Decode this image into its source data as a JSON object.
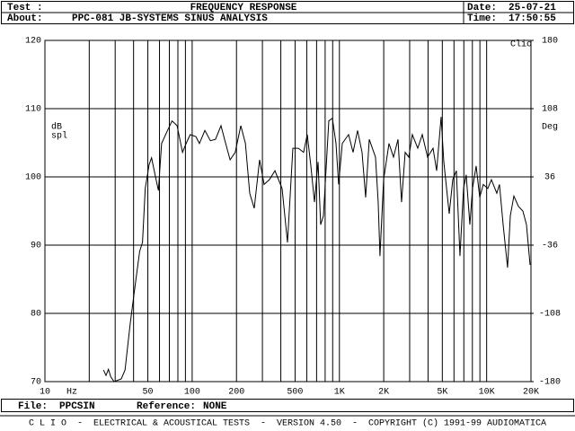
{
  "header": {
    "test_label": "Test :",
    "title": "FREQUENCY RESPONSE",
    "date_label": "Date:",
    "date": "25-07-21",
    "about_label": "About:",
    "about": "PPC-081 JB-SYSTEMS SINUS ANALYSIS",
    "time_label": "Time:",
    "time": "17:50:55"
  },
  "chart_data": {
    "type": "line",
    "x_log": true,
    "grid": true,
    "color": "#000000",
    "xlim": [
      10,
      20000
    ],
    "xticks": [
      10,
      50,
      100,
      200,
      500,
      {
        "value": 1000,
        "label": "1K"
      },
      {
        "value": 2000,
        "label": "2K"
      },
      {
        "value": 5000,
        "label": "5K"
      },
      {
        "value": 10000,
        "label": "10K"
      },
      {
        "value": 20000,
        "label": "20K"
      }
    ],
    "x_minor_grid": [
      20,
      30,
      40,
      60,
      70,
      80,
      90,
      300,
      400,
      600,
      700,
      800,
      900,
      3000,
      4000,
      6000,
      7000,
      8000,
      9000
    ],
    "x_unit": "Hz",
    "ylim": [
      70,
      120
    ],
    "yticks": [
      70,
      80,
      90,
      100,
      110,
      120
    ],
    "y_label": [
      "dB",
      "spl"
    ],
    "y2lim": [
      -180,
      180
    ],
    "y2ticks": [
      -180,
      -108,
      -36,
      36,
      108,
      180
    ],
    "y2_label": "Deg",
    "logo": "Clio",
    "x": [
      25,
      26,
      27,
      28,
      29.5,
      33,
      35,
      38,
      41,
      44,
      46,
      48,
      51,
      53,
      56,
      59,
      62,
      68,
      73,
      79,
      86,
      91,
      97,
      106,
      112,
      122,
      133,
      144,
      157,
      166,
      181,
      196,
      214,
      230,
      246,
      264,
      287,
      308,
      335,
      365,
      408,
      444,
      483,
      526,
      571,
      605,
      640,
      677,
      716,
      746,
      779,
      847,
      896,
      948,
      988,
      1046,
      1154,
      1238,
      1328,
      1425,
      1507,
      1595,
      1758,
      1834,
      1886,
      1996,
      2172,
      2330,
      2500,
      2643,
      2797,
      2960,
      3128,
      3405,
      3653,
      3972,
      4325,
      4574,
      4906,
      5117,
      5569,
      5888,
      6227,
      6588,
      6966,
      7262,
      7691,
      8017,
      8484,
      8977,
      9488,
      10180,
      10770,
      11720,
      12220,
      12940,
      13870,
      14480,
      15310,
      16420,
      17620,
      18640,
      19720
    ],
    "values": [
      71.7,
      70.9,
      71.8,
      70.7,
      70,
      70.4,
      71.7,
      78.6,
      84.1,
      89.1,
      90.4,
      98.3,
      101.8,
      102.8,
      100.3,
      98.0,
      104.9,
      106.8,
      108.2,
      107.5,
      103.6,
      104.9,
      106.2,
      105.9,
      104.9,
      106.8,
      105.3,
      105.5,
      107.5,
      105.5,
      102.5,
      103.6,
      107.5,
      104.9,
      97.6,
      95.4,
      102.5,
      98.9,
      99.6,
      100.9,
      98.3,
      90.4,
      104.2,
      104.2,
      103.6,
      106.2,
      101.6,
      96.3,
      102.2,
      93.0,
      94.3,
      108.2,
      108.6,
      104.9,
      98.9,
      104.9,
      106.2,
      103.6,
      106.8,
      103.6,
      97.0,
      105.5,
      102.9,
      96.3,
      88.4,
      99.6,
      104.9,
      102.9,
      105.5,
      96.3,
      103.6,
      102.9,
      106.2,
      104.2,
      106.2,
      102.9,
      104.2,
      100.9,
      108.8,
      102.2,
      94.6,
      99.6,
      100.9,
      88.4,
      98.3,
      100.3,
      93.0,
      98.3,
      101.6,
      97.0,
      98.9,
      98.3,
      99.6,
      97.6,
      98.9,
      93.0,
      86.7,
      94.3,
      97.2,
      95.7,
      95.0,
      93.0,
      87.1
    ]
  },
  "footer": {
    "file_label": "File:",
    "file": "PPCSIN",
    "reference_label": "Reference:",
    "reference": "NONE",
    "status": "C L I O  -  ELECTRICAL & ACOUSTICAL TESTS  -  VERSION 4.50  -  COPYRIGHT (C) 1991-99 AUDIOMATICA"
  }
}
